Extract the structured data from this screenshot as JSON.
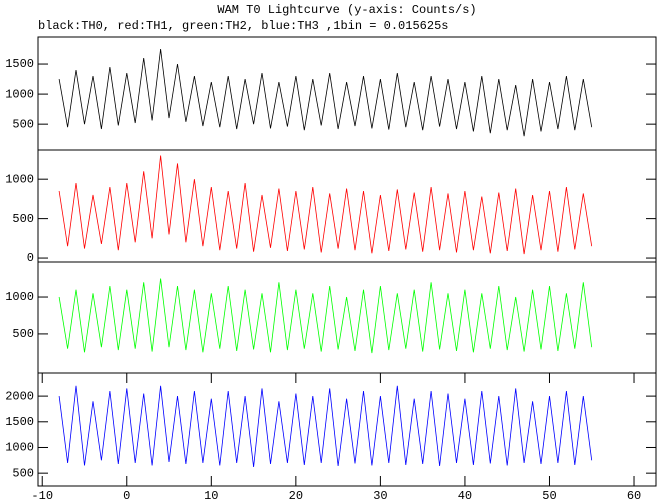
{
  "title": "WAM T0 Lightcurve (y-axis: Counts/s)",
  "subtitle": "black:TH0, red:TH1, green:TH2, blue:TH3 ,1bin = 0.015625s",
  "chart_data": [
    {
      "type": "line",
      "xlim": [
        -10.5,
        62.6
      ],
      "ylim": [
        70,
        1950
      ],
      "yticks": [
        500,
        1000,
        1500
      ],
      "x": [
        -8,
        -7,
        -6,
        -5,
        -4,
        -3,
        -2,
        -1,
        0,
        1,
        2,
        3,
        4,
        5,
        6,
        7,
        8,
        9,
        10,
        11,
        12,
        13,
        14,
        15,
        16,
        17,
        18,
        19,
        20,
        21,
        22,
        23,
        24,
        25,
        26,
        27,
        28,
        29,
        30,
        31,
        32,
        33,
        34,
        35,
        36,
        37,
        38,
        39,
        40,
        41,
        42,
        43,
        44,
        45,
        46,
        47,
        48,
        49,
        50,
        51,
        52,
        53,
        54,
        55
      ],
      "series": [
        {
          "color": "#000000",
          "values": [
            1250,
            450,
            1400,
            500,
            1300,
            420,
            1450,
            480,
            1350,
            520,
            1600,
            560,
            1750,
            600,
            1500,
            540,
            1300,
            470,
            1200,
            450,
            1300,
            420,
            1250,
            500,
            1350,
            430,
            1200,
            460,
            1300,
            400,
            1250,
            480,
            1350,
            420,
            1200,
            470,
            1300,
            430,
            1250,
            410,
            1350,
            450,
            1200,
            400,
            1300,
            460,
            1250,
            420,
            1200,
            380,
            1300,
            350,
            1250,
            400,
            1150,
            300,
            1250,
            380,
            1200,
            420,
            1300,
            400,
            1250,
            450
          ]
        }
      ]
    },
    {
      "type": "line",
      "xlim": [
        -10.5,
        62.6
      ],
      "ylim": [
        -50,
        1370
      ],
      "yticks": [
        0,
        500,
        1000
      ],
      "x": [
        -8,
        -7,
        -6,
        -5,
        -4,
        -3,
        -2,
        -1,
        0,
        1,
        2,
        3,
        4,
        5,
        6,
        7,
        8,
        9,
        10,
        11,
        12,
        13,
        14,
        15,
        16,
        17,
        18,
        19,
        20,
        21,
        22,
        23,
        24,
        25,
        26,
        27,
        28,
        29,
        30,
        31,
        32,
        33,
        34,
        35,
        36,
        37,
        38,
        39,
        40,
        41,
        42,
        43,
        44,
        45,
        46,
        47,
        48,
        49,
        50,
        51,
        52,
        53,
        54,
        55
      ],
      "series": [
        {
          "color": "#ff0000",
          "values": [
            850,
            150,
            950,
            120,
            800,
            180,
            900,
            100,
            950,
            200,
            1100,
            250,
            1300,
            300,
            1200,
            200,
            1000,
            150,
            900,
            100,
            850,
            120,
            950,
            80,
            800,
            130,
            880,
            90,
            850,
            110,
            900,
            70,
            820,
            120,
            880,
            100,
            850,
            60,
            800,
            90,
            870,
            110,
            830,
            80,
            900,
            100,
            820,
            70,
            850,
            100,
            780,
            60,
            830,
            90,
            880,
            50,
            800,
            100,
            850,
            80,
            900,
            110,
            820,
            150
          ]
        }
      ]
    },
    {
      "type": "line",
      "xlim": [
        -10.5,
        62.6
      ],
      "ylim": [
        -30,
        1475
      ],
      "yticks": [
        500,
        1000
      ],
      "x": [
        -8,
        -7,
        -6,
        -5,
        -4,
        -3,
        -2,
        -1,
        0,
        1,
        2,
        3,
        4,
        5,
        6,
        7,
        8,
        9,
        10,
        11,
        12,
        13,
        14,
        15,
        16,
        17,
        18,
        19,
        20,
        21,
        22,
        23,
        24,
        25,
        26,
        27,
        28,
        29,
        30,
        31,
        32,
        33,
        34,
        35,
        36,
        37,
        38,
        39,
        40,
        41,
        42,
        43,
        44,
        45,
        46,
        47,
        48,
        49,
        50,
        51,
        52,
        53,
        54,
        55
      ],
      "series": [
        {
          "color": "#00ff00",
          "values": [
            1000,
            300,
            1100,
            250,
            1050,
            320,
            1150,
            280,
            1100,
            300,
            1200,
            260,
            1250,
            320,
            1150,
            280,
            1100,
            250,
            1050,
            300,
            1150,
            270,
            1100,
            290,
            1050,
            250,
            1200,
            280,
            1100,
            300,
            1050,
            260,
            1150,
            290,
            1000,
            270,
            1100,
            240,
            1150,
            280,
            1050,
            300,
            1100,
            260,
            1200,
            290,
            1050,
            270,
            1100,
            250,
            1050,
            300,
            1150,
            280,
            1000,
            260,
            1100,
            290,
            1150,
            270,
            1050,
            300,
            1200,
            320
          ]
        }
      ]
    },
    {
      "type": "line",
      "xlim": [
        -10.5,
        62.6
      ],
      "ylim": [
        250,
        2450
      ],
      "yticks": [
        500,
        1000,
        1500,
        2000
      ],
      "xticks": [
        -10,
        0,
        10,
        20,
        30,
        40,
        50,
        60
      ],
      "x": [
        -8,
        -7,
        -6,
        -5,
        -4,
        -3,
        -2,
        -1,
        0,
        1,
        2,
        3,
        4,
        5,
        6,
        7,
        8,
        9,
        10,
        11,
        12,
        13,
        14,
        15,
        16,
        17,
        18,
        19,
        20,
        21,
        22,
        23,
        24,
        25,
        26,
        27,
        28,
        29,
        30,
        31,
        32,
        33,
        34,
        35,
        36,
        37,
        38,
        39,
        40,
        41,
        42,
        43,
        44,
        45,
        46,
        47,
        48,
        49,
        50,
        51,
        52,
        53,
        54,
        55
      ],
      "series": [
        {
          "color": "#0000ff",
          "values": [
            2000,
            700,
            2200,
            650,
            1900,
            750,
            2100,
            680,
            2150,
            700,
            2050,
            650,
            2200,
            720,
            2000,
            680,
            2100,
            700,
            1950,
            650,
            2100,
            700,
            2000,
            620,
            2150,
            680,
            1900,
            700,
            2050,
            660,
            2000,
            700,
            2150,
            640,
            1950,
            690,
            2100,
            650,
            2000,
            700,
            2200,
            660,
            1950,
            680,
            2100,
            640,
            2050,
            700,
            1950,
            660,
            2100,
            690,
            2000,
            650,
            2150,
            700,
            1900,
            680,
            2000,
            700,
            2100,
            660,
            2000,
            750
          ]
        }
      ]
    }
  ]
}
